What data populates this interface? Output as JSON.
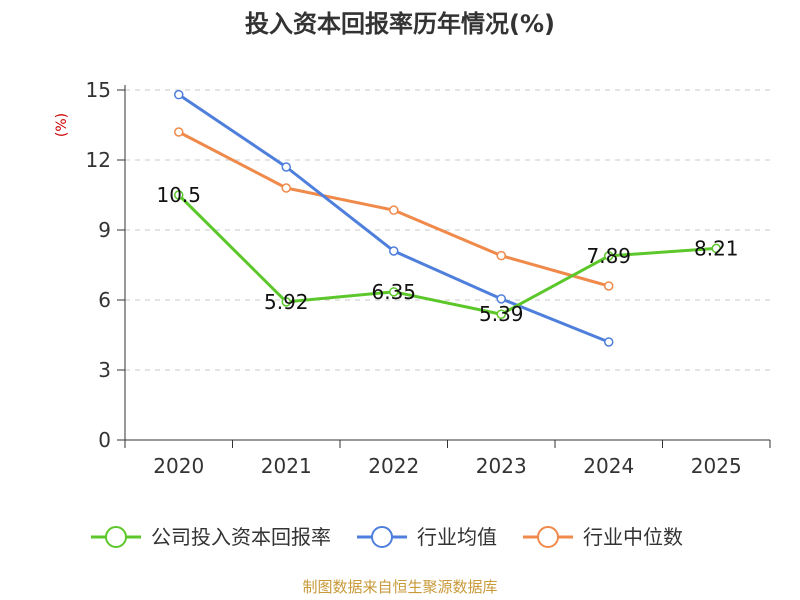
{
  "chart_data": {
    "type": "line",
    "title": "投入资本回报率历年情况(%)",
    "ylabel": "(%)",
    "xlabel": "",
    "ylim": [
      0,
      15
    ],
    "yticks": [
      0,
      3,
      6,
      9,
      12,
      15
    ],
    "grid": true,
    "categories": [
      "2020",
      "2021",
      "2022",
      "2023",
      "2024",
      "2025"
    ],
    "series": [
      {
        "name": "公司投入资本回报率",
        "color": "#5cc72a",
        "values": [
          10.5,
          5.92,
          6.35,
          5.39,
          7.89,
          8.21
        ],
        "labels": [
          "10.5",
          "5.92",
          "6.35",
          "5.39",
          "7.89",
          "8.21"
        ]
      },
      {
        "name": "行业均值",
        "color": "#4f7fdc",
        "values": [
          14.8,
          11.7,
          8.1,
          6.05,
          4.2,
          null
        ]
      },
      {
        "name": "行业中位数",
        "color": "#f08a4b",
        "values": [
          13.2,
          10.8,
          9.85,
          7.9,
          6.6,
          null
        ]
      }
    ],
    "legend_position": "bottom"
  },
  "source": "制图数据来自恒生聚源数据库"
}
